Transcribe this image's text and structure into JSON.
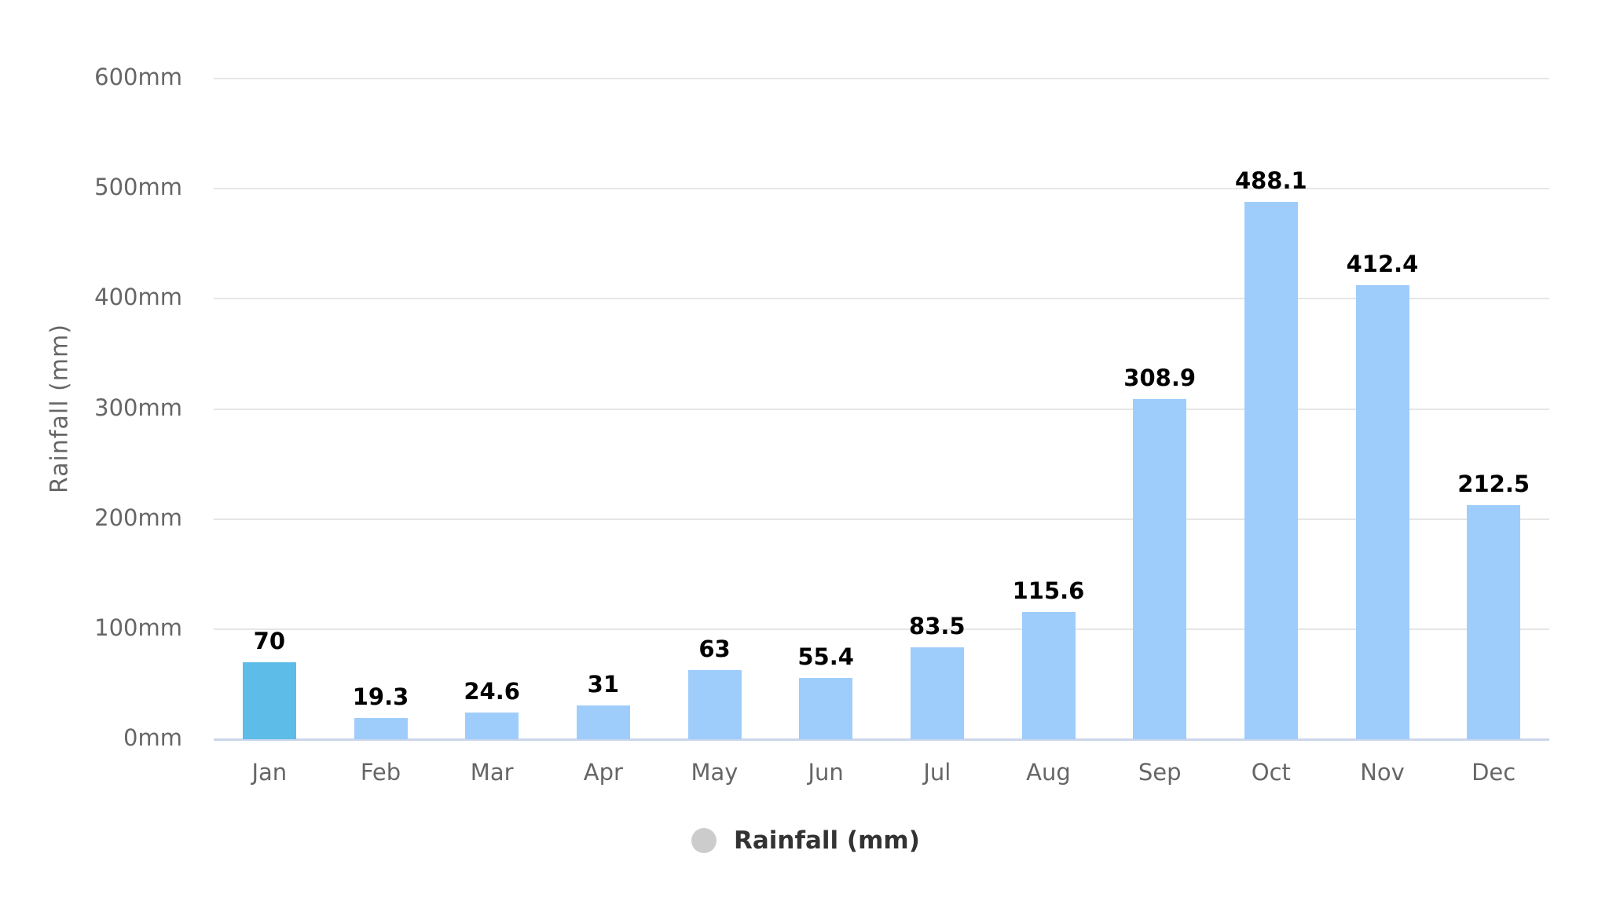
{
  "chart_data": {
    "type": "bar",
    "title": "",
    "xlabel": "",
    "ylabel": "Rainfall (mm)",
    "ylim": [
      0,
      600
    ],
    "yticks": [
      "0mm",
      "100mm",
      "200mm",
      "300mm",
      "400mm",
      "500mm",
      "600mm"
    ],
    "grid": true,
    "legend_position": "bottom-center",
    "categories": [
      "Jan",
      "Feb",
      "Mar",
      "Apr",
      "May",
      "Jun",
      "Jul",
      "Aug",
      "Sep",
      "Oct",
      "Nov",
      "Dec"
    ],
    "series": [
      {
        "name": "Rainfall (mm)",
        "values": [
          70,
          19.3,
          24.6,
          31,
          63,
          55.4,
          83.5,
          115.6,
          308.9,
          488.1,
          412.4,
          212.5
        ],
        "value_labels": [
          "70",
          "19.3",
          "24.6",
          "31",
          "63",
          "55.4",
          "83.5",
          "115.6",
          "308.9",
          "488.1",
          "412.4",
          "212.5"
        ],
        "color": "#9fcdfb",
        "highlight_color": "#5ebde8",
        "highlight_index": 0
      }
    ]
  },
  "legend": {
    "label": "Rainfall (mm)",
    "symbol_color": "#cccccc"
  }
}
